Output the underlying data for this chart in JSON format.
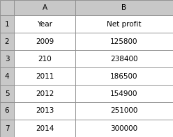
{
  "rows": [
    [
      "1",
      "Year",
      "Net profit"
    ],
    [
      "2",
      "2009",
      "125800"
    ],
    [
      "3",
      "210",
      "238400"
    ],
    [
      "4",
      "2011",
      "186500"
    ],
    [
      "5",
      "2012",
      "154900"
    ],
    [
      "6",
      "2013",
      "251000"
    ],
    [
      "7",
      "2014",
      "300000"
    ]
  ],
  "col_labels": [
    "A",
    "B"
  ],
  "bg_header": "#c8c8c8",
  "bg_cell": "#ffffff",
  "border_color": "#888888",
  "text_color": "#000000",
  "font_size": 7.5,
  "fig_w": 2.48,
  "fig_h": 1.97,
  "dpi": 100
}
